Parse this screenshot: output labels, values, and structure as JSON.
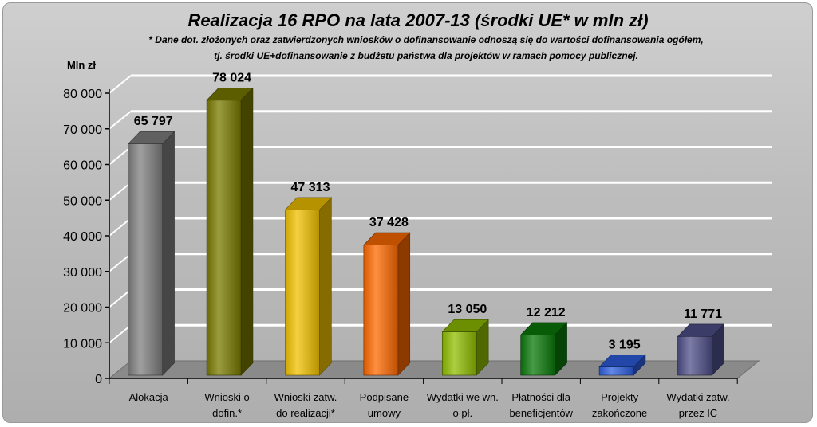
{
  "chart_data": {
    "type": "bar",
    "title": "Realizacja 16 RPO na lata 2007-13 (środki UE* w mln zł)",
    "subtitle": [
      "* Dane dot. złożonych oraz zatwierdzonych wniosków o dofinansowanie odnoszą się do wartości dofinansowania ogółem,",
      "tj. środki UE+dofinansowanie z budżetu państwa dla projektów w ramach pomocy publicznej."
    ],
    "ylabel": "Mln zł",
    "ylim": [
      0,
      80000
    ],
    "yticks": [
      0,
      10000,
      20000,
      30000,
      40000,
      50000,
      60000,
      70000,
      80000
    ],
    "ytick_labels": [
      "0",
      "10 000",
      "20 000",
      "30 000",
      "40 000",
      "50 000",
      "60 000",
      "70 000",
      "80 000"
    ],
    "grid": true,
    "legend": "none",
    "categories": [
      [
        "Alokacja"
      ],
      [
        "Wnioski o",
        "dofin.*"
      ],
      [
        "Wnioski zatw.",
        "do realizacji*"
      ],
      [
        "Podpisane",
        "umowy"
      ],
      [
        "Wydatki we wn.",
        "o pł."
      ],
      [
        "Płatności dla",
        "beneficjentów"
      ],
      [
        "Projekty",
        "zakończone"
      ],
      [
        "Wydatki zatw.",
        "przez IC"
      ]
    ],
    "values": [
      65797,
      78024,
      47313,
      37428,
      13050,
      12212,
      3195,
      11771
    ],
    "value_labels": [
      "65 797",
      "78 024",
      "47 313",
      "37 428",
      "13 050",
      "12 212",
      "3 195",
      "11 771"
    ],
    "colors": [
      "#808080",
      "#7a7a00",
      "#f2c200",
      "#ff6a00",
      "#8fbf00",
      "#0a7a0a",
      "#2d5fe0",
      "#50508a"
    ]
  }
}
